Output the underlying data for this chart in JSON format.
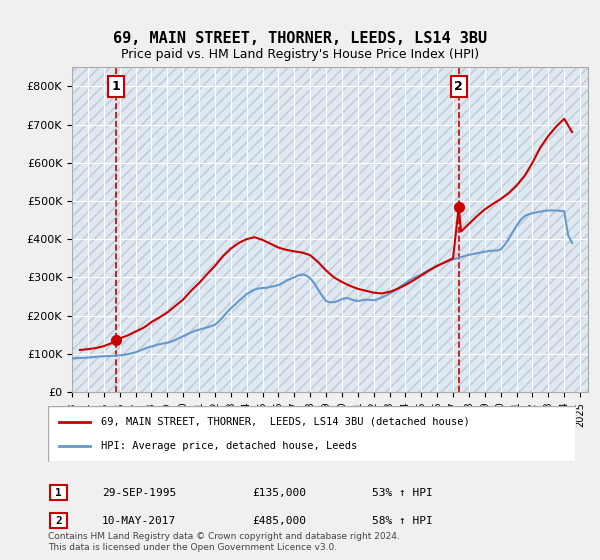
{
  "title": "69, MAIN STREET, THORNER, LEEDS, LS14 3BU",
  "subtitle": "Price paid vs. HM Land Registry's House Price Index (HPI)",
  "ylabel_ticks": [
    "£0",
    "£100K",
    "£200K",
    "£300K",
    "£400K",
    "£500K",
    "£600K",
    "£700K",
    "£800K"
  ],
  "ytick_values": [
    0,
    100000,
    200000,
    300000,
    400000,
    500000,
    600000,
    700000,
    800000
  ],
  "ylim": [
    0,
    850000
  ],
  "xlim_start": 1993.0,
  "xlim_end": 2025.5,
  "point1_x": 1995.75,
  "point1_y": 135000,
  "point1_label": "1",
  "point1_date": "29-SEP-1995",
  "point1_price": "£135,000",
  "point1_hpi": "53% ↑ HPI",
  "point2_x": 2017.36,
  "point2_y": 485000,
  "point2_label": "2",
  "point2_date": "10-MAY-2017",
  "point2_price": "£485,000",
  "point2_hpi": "58% ↑ HPI",
  "line_color_red": "#cc0000",
  "line_color_blue": "#6699cc",
  "bg_color": "#e8e8f0",
  "plot_bg": "#dde8f0",
  "grid_color": "#ffffff",
  "legend_label_red": "69, MAIN STREET, THORNER,  LEEDS, LS14 3BU (detached house)",
  "legend_label_blue": "HPI: Average price, detached house, Leeds",
  "footer": "Contains HM Land Registry data © Crown copyright and database right 2024.\nThis data is licensed under the Open Government Licence v3.0.",
  "hpi_x": [
    1993.0,
    1993.25,
    1993.5,
    1993.75,
    1994.0,
    1994.25,
    1994.5,
    1994.75,
    1995.0,
    1995.25,
    1995.5,
    1995.75,
    1996.0,
    1996.25,
    1996.5,
    1996.75,
    1997.0,
    1997.25,
    1997.5,
    1997.75,
    1998.0,
    1998.25,
    1998.5,
    1998.75,
    1999.0,
    1999.25,
    1999.5,
    1999.75,
    2000.0,
    2000.25,
    2000.5,
    2000.75,
    2001.0,
    2001.25,
    2001.5,
    2001.75,
    2002.0,
    2002.25,
    2002.5,
    2002.75,
    2003.0,
    2003.25,
    2003.5,
    2003.75,
    2004.0,
    2004.25,
    2004.5,
    2004.75,
    2005.0,
    2005.25,
    2005.5,
    2005.75,
    2006.0,
    2006.25,
    2006.5,
    2006.75,
    2007.0,
    2007.25,
    2007.5,
    2007.75,
    2008.0,
    2008.25,
    2008.5,
    2008.75,
    2009.0,
    2009.25,
    2009.5,
    2009.75,
    2010.0,
    2010.25,
    2010.5,
    2010.75,
    2011.0,
    2011.25,
    2011.5,
    2011.75,
    2012.0,
    2012.25,
    2012.5,
    2012.75,
    2013.0,
    2013.25,
    2013.5,
    2013.75,
    2014.0,
    2014.25,
    2014.5,
    2014.75,
    2015.0,
    2015.25,
    2015.5,
    2015.75,
    2016.0,
    2016.25,
    2016.5,
    2016.75,
    2017.0,
    2017.25,
    2017.5,
    2017.75,
    2018.0,
    2018.25,
    2018.5,
    2018.75,
    2019.0,
    2019.25,
    2019.5,
    2019.75,
    2020.0,
    2020.25,
    2020.5,
    2020.75,
    2021.0,
    2021.25,
    2021.5,
    2021.75,
    2022.0,
    2022.25,
    2022.5,
    2022.75,
    2023.0,
    2023.25,
    2023.5,
    2023.75,
    2024.0,
    2024.25,
    2024.5
  ],
  "hpi_y": [
    88000,
    88500,
    89000,
    89500,
    90000,
    91000,
    92000,
    93000,
    93500,
    94000,
    94500,
    95000,
    96000,
    97000,
    99000,
    101000,
    104000,
    108000,
    112000,
    116000,
    119000,
    122000,
    125000,
    127000,
    129000,
    132000,
    136000,
    141000,
    146000,
    151000,
    156000,
    160000,
    163000,
    166000,
    169000,
    172000,
    176000,
    185000,
    196000,
    208000,
    219000,
    228000,
    238000,
    247000,
    256000,
    263000,
    268000,
    271000,
    272000,
    273000,
    275000,
    277000,
    280000,
    285000,
    291000,
    296000,
    300000,
    305000,
    308000,
    305000,
    298000,
    285000,
    268000,
    252000,
    238000,
    235000,
    235000,
    238000,
    243000,
    246000,
    244000,
    240000,
    238000,
    240000,
    242000,
    241000,
    240000,
    243000,
    247000,
    252000,
    257000,
    263000,
    270000,
    278000,
    285000,
    292000,
    298000,
    303000,
    308000,
    314000,
    320000,
    325000,
    330000,
    335000,
    339000,
    343000,
    347000,
    350000,
    353000,
    356000,
    359000,
    361000,
    363000,
    365000,
    367000,
    369000,
    370000,
    370000,
    373000,
    385000,
    400000,
    418000,
    435000,
    450000,
    460000,
    465000,
    468000,
    470000,
    472000,
    474000,
    475000,
    475000,
    475000,
    474000,
    473000,
    410000,
    390000
  ],
  "property_x": [
    1993.5,
    1994.0,
    1994.5,
    1995.0,
    1995.5,
    1995.75,
    1996.0,
    1996.5,
    1997.0,
    1997.5,
    1997.75,
    1998.0,
    1998.5,
    1999.0,
    1999.5,
    2000.0,
    2000.5,
    2001.0,
    2001.5,
    2002.0,
    2002.5,
    2003.0,
    2003.5,
    2004.0,
    2004.5,
    2005.0,
    2005.5,
    2006.0,
    2006.5,
    2007.0,
    2007.5,
    2008.0,
    2008.5,
    2009.0,
    2009.5,
    2010.0,
    2010.5,
    2011.0,
    2011.5,
    2012.0,
    2012.5,
    2013.0,
    2013.5,
    2014.0,
    2014.5,
    2015.0,
    2015.5,
    2016.0,
    2016.5,
    2017.0,
    2017.36,
    2017.5,
    2018.0,
    2018.5,
    2019.0,
    2019.5,
    2020.0,
    2020.5,
    2021.0,
    2021.5,
    2022.0,
    2022.5,
    2023.0,
    2023.5,
    2024.0,
    2024.5
  ],
  "property_y": [
    110000,
    112000,
    115000,
    120000,
    128000,
    135000,
    140000,
    148000,
    158000,
    168000,
    175000,
    183000,
    195000,
    208000,
    225000,
    242000,
    265000,
    285000,
    308000,
    330000,
    355000,
    375000,
    390000,
    400000,
    405000,
    398000,
    388000,
    378000,
    372000,
    368000,
    365000,
    358000,
    340000,
    318000,
    300000,
    288000,
    278000,
    270000,
    265000,
    260000,
    258000,
    262000,
    270000,
    280000,
    292000,
    305000,
    318000,
    330000,
    340000,
    350000,
    485000,
    420000,
    440000,
    460000,
    478000,
    492000,
    505000,
    520000,
    540000,
    565000,
    600000,
    640000,
    670000,
    695000,
    715000,
    680000
  ]
}
